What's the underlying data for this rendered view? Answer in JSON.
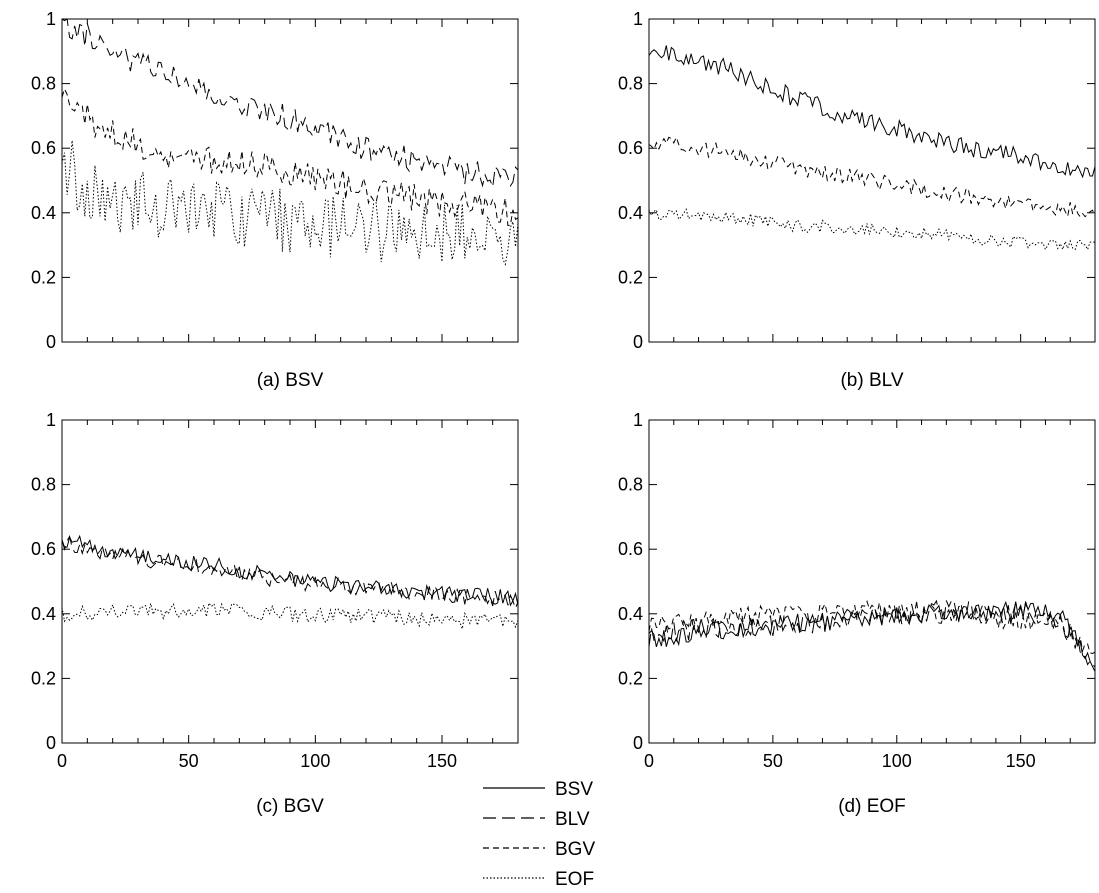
{
  "chart_data": [
    {
      "type": "line",
      "caption": "(a) BSV",
      "xlim": [
        0,
        180
      ],
      "ylim": [
        0,
        1
      ],
      "y_ticks": [
        "0",
        "0.2",
        "0.4",
        "0.6",
        "0.8",
        "1"
      ],
      "x_ticks": [],
      "grid": false,
      "series": [
        {
          "name": "BLV",
          "trend": [
            [
              0,
              0.99
            ],
            [
              30,
              0.86
            ],
            [
              60,
              0.76
            ],
            [
              90,
              0.69
            ],
            [
              120,
              0.6
            ],
            [
              150,
              0.54
            ],
            [
              180,
              0.5
            ]
          ],
          "noise": 0.04,
          "seed": 11
        },
        {
          "name": "BGV",
          "trend": [
            [
              0,
              0.79
            ],
            [
              15,
              0.66
            ],
            [
              40,
              0.58
            ],
            [
              80,
              0.55
            ],
            [
              120,
              0.47
            ],
            [
              150,
              0.43
            ],
            [
              180,
              0.4
            ]
          ],
          "noise": 0.045,
          "seed": 12
        },
        {
          "name": "EOF",
          "trend": [
            [
              0,
              0.58
            ],
            [
              10,
              0.45
            ],
            [
              40,
              0.42
            ],
            [
              80,
              0.38
            ],
            [
              120,
              0.35
            ],
            [
              180,
              0.32
            ]
          ],
          "noise": 0.1,
          "seed": 13
        }
      ]
    },
    {
      "type": "line",
      "caption": "(b) BLV",
      "xlim": [
        0,
        180
      ],
      "ylim": [
        0,
        1
      ],
      "y_ticks": [
        "0",
        "0.2",
        "0.4",
        "0.6",
        "0.8",
        "1"
      ],
      "x_ticks": [],
      "grid": false,
      "series": [
        {
          "name": "BSV",
          "trend": [
            [
              0,
              0.91
            ],
            [
              30,
              0.85
            ],
            [
              60,
              0.75
            ],
            [
              90,
              0.68
            ],
            [
              120,
              0.62
            ],
            [
              150,
              0.57
            ],
            [
              180,
              0.52
            ]
          ],
          "noise": 0.03,
          "seed": 21
        },
        {
          "name": "BGV",
          "trend": [
            [
              0,
              0.62
            ],
            [
              30,
              0.59
            ],
            [
              60,
              0.54
            ],
            [
              90,
              0.5
            ],
            [
              120,
              0.46
            ],
            [
              150,
              0.43
            ],
            [
              180,
              0.4
            ]
          ],
          "noise": 0.025,
          "seed": 22
        },
        {
          "name": "EOF",
          "trend": [
            [
              0,
              0.4
            ],
            [
              30,
              0.39
            ],
            [
              60,
              0.36
            ],
            [
              90,
              0.35
            ],
            [
              120,
              0.33
            ],
            [
              150,
              0.31
            ],
            [
              180,
              0.3
            ]
          ],
          "noise": 0.02,
          "seed": 23
        }
      ]
    },
    {
      "type": "line",
      "caption": "(c) BGV",
      "xlim": [
        0,
        180
      ],
      "ylim": [
        0,
        1
      ],
      "y_ticks": [
        "0",
        "0.2",
        "0.4",
        "0.6",
        "0.8",
        "1"
      ],
      "x_ticks": [
        "0",
        "50",
        "100",
        "150"
      ],
      "grid": false,
      "series": [
        {
          "name": "BSV",
          "trend": [
            [
              0,
              0.63
            ],
            [
              30,
              0.58
            ],
            [
              60,
              0.55
            ],
            [
              90,
              0.51
            ],
            [
              120,
              0.48
            ],
            [
              150,
              0.46
            ],
            [
              180,
              0.45
            ]
          ],
          "noise": 0.025,
          "seed": 31
        },
        {
          "name": "BLV",
          "trend": [
            [
              0,
              0.62
            ],
            [
              30,
              0.57
            ],
            [
              60,
              0.54
            ],
            [
              90,
              0.5
            ],
            [
              120,
              0.48
            ],
            [
              150,
              0.46
            ],
            [
              180,
              0.44
            ]
          ],
          "noise": 0.025,
          "seed": 32
        },
        {
          "name": "EOF",
          "trend": [
            [
              0,
              0.4
            ],
            [
              30,
              0.41
            ],
            [
              60,
              0.41
            ],
            [
              90,
              0.4
            ],
            [
              120,
              0.39
            ],
            [
              150,
              0.38
            ],
            [
              180,
              0.37
            ]
          ],
          "noise": 0.025,
          "seed": 33
        }
      ]
    },
    {
      "type": "line",
      "caption": "(d) EOF",
      "xlim": [
        0,
        180
      ],
      "ylim": [
        0,
        1
      ],
      "y_ticks": [
        "0",
        "0.2",
        "0.4",
        "0.6",
        "0.8",
        "1"
      ],
      "x_ticks": [
        "0",
        "50",
        "100",
        "150"
      ],
      "grid": false,
      "series": [
        {
          "name": "BSV",
          "trend": [
            [
              0,
              0.32
            ],
            [
              30,
              0.35
            ],
            [
              60,
              0.37
            ],
            [
              90,
              0.39
            ],
            [
              120,
              0.4
            ],
            [
              150,
              0.41
            ],
            [
              165,
              0.4
            ],
            [
              180,
              0.25
            ]
          ],
          "noise": 0.03,
          "seed": 41
        },
        {
          "name": "BLV",
          "trend": [
            [
              0,
              0.33
            ],
            [
              30,
              0.36
            ],
            [
              60,
              0.37
            ],
            [
              90,
              0.39
            ],
            [
              120,
              0.41
            ],
            [
              150,
              0.4
            ],
            [
              165,
              0.39
            ],
            [
              180,
              0.24
            ]
          ],
          "noise": 0.035,
          "seed": 42
        },
        {
          "name": "BGV",
          "trend": [
            [
              0,
              0.36
            ],
            [
              30,
              0.39
            ],
            [
              60,
              0.4
            ],
            [
              90,
              0.41
            ],
            [
              120,
              0.4
            ],
            [
              150,
              0.38
            ],
            [
              165,
              0.37
            ],
            [
              180,
              0.26
            ]
          ],
          "noise": 0.03,
          "seed": 43
        }
      ]
    }
  ],
  "legend": {
    "placement": "bottom-center",
    "entries": [
      {
        "name": "BSV",
        "style": "solid"
      },
      {
        "name": "BLV",
        "style": "long-dash"
      },
      {
        "name": "BGV",
        "style": "short-dash"
      },
      {
        "name": "EOF",
        "style": "dotted"
      }
    ]
  },
  "line_styles": {
    "BSV": "none",
    "BLV": "13,6",
    "BGV": "6,4",
    "EOF": "1.5,2"
  },
  "colors": {
    "line": "#000000",
    "axis": "#000000",
    "background": "#ffffff"
  }
}
